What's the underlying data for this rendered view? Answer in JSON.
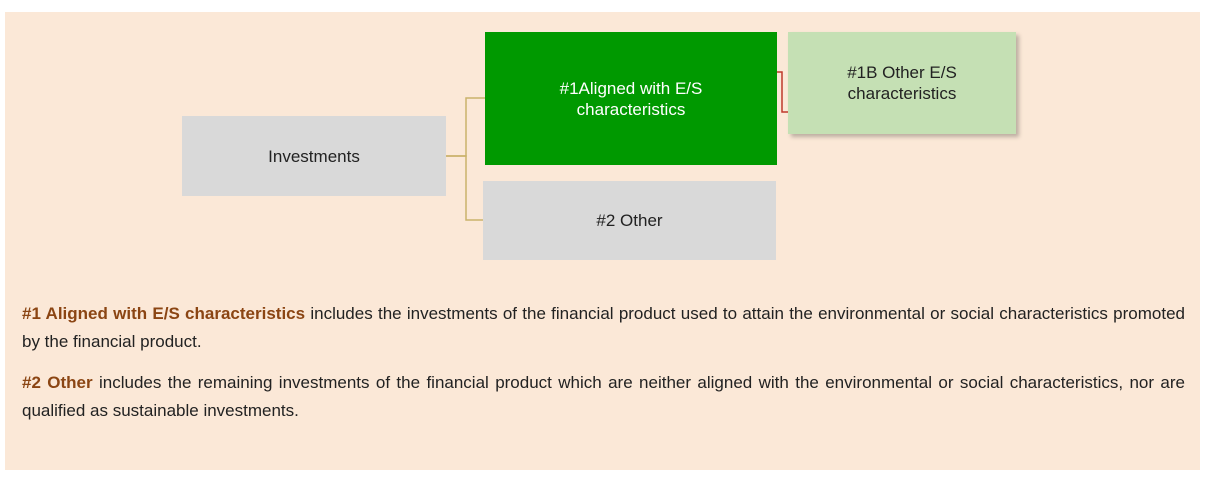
{
  "nodes": [
    {
      "label": "Investments"
    },
    {
      "label": "#1Aligned with E/S characteristics"
    },
    {
      "label": "#1B Other E/S characteristics"
    },
    {
      "label": "#2 Other"
    }
  ],
  "paragraphs": [
    {
      "bold": "#1 Aligned with E/S characteristics",
      "text": "includes the investments of the financial product used to attain the environmental or social characteristics promoted by the financial product."
    },
    {
      "bold": "#2 Other",
      "text": "includes the remaining investments of the financial product which are neither aligned with the environmental or social characteristics, nor are qualified as sustainable investments."
    }
  ]
}
